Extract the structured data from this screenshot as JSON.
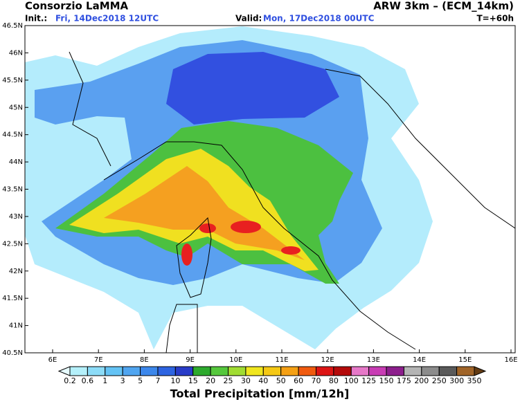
{
  "header": {
    "left_title": "Consorzio LaMMA",
    "init_label": "Init.:",
    "init_value": "Fri, 14Dec2018 12UTC",
    "model": "ARW 3km – (ECM_14km)",
    "valid_label": "Valid:",
    "valid_value": "Mon, 17Dec2018 00UTC",
    "lead": "T=+60h"
  },
  "map": {
    "lat_labels": [
      "46.5N",
      "46N",
      "45.5N",
      "45N",
      "44.5N",
      "44N",
      "43.5N",
      "43N",
      "42.5N",
      "42N",
      "41.5N",
      "41N",
      "40.5N"
    ],
    "lon_labels": [
      "6E",
      "7E",
      "8E",
      "9E",
      "10E",
      "11E",
      "12E",
      "13E",
      "14E",
      "15E",
      "16E"
    ]
  },
  "colorbar": {
    "title": "Total Precipitation [mm/12h]",
    "labels": [
      0.2,
      0.6,
      1,
      3,
      5,
      7,
      10,
      15,
      20,
      25,
      30,
      40,
      50,
      60,
      70,
      80,
      100,
      125,
      150,
      175,
      200,
      250,
      300,
      350
    ],
    "colors": [
      "#e6fbff",
      "#b4f0fa",
      "#8cdcf8",
      "#64c3f5",
      "#50a5f0",
      "#3c87eb",
      "#2d64e1",
      "#283cc8",
      "#2daa2d",
      "#55c83c",
      "#a0dc32",
      "#f0e61e",
      "#f5c814",
      "#f5a014",
      "#f05a0f",
      "#dc1414",
      "#b40a0a",
      "#e678c8",
      "#c83cb4",
      "#8c1e8c",
      "#b4b4b4",
      "#8c8c8c",
      "#5a5a5a",
      "#a06428",
      "#643c14"
    ]
  }
}
